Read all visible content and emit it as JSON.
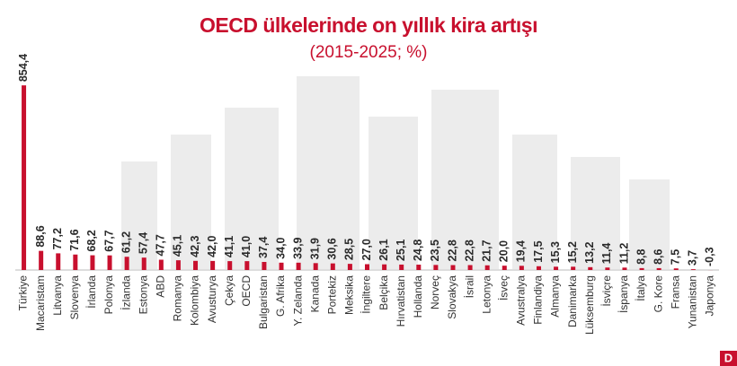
{
  "chart_data": {
    "type": "bar",
    "title": "OECD ülkelerinde on yıllık kira artışı",
    "subtitle": "(2015-2025; %)",
    "logo": "D",
    "color": "#c8102e",
    "ylim": [
      0,
      880
    ],
    "categories": [
      "Türkiye",
      "Macaristam",
      "Litvanya",
      "Slovenya",
      "İrlanda",
      "Polonya",
      "İzlanda",
      "Estonya",
      "ABD",
      "Romanya",
      "Kolombiya",
      "Avusturya",
      "Çekya",
      "OECD",
      "Bulgaristan",
      "G. Afrika",
      "Y. Zelanda",
      "Kanada",
      "Portekiz",
      "Meksika",
      "İngiltere",
      "Belçika",
      "Hırvatistan",
      "Hollanda",
      "Norveç",
      "Slovakya",
      "İsrail",
      "Letonya",
      "İsveç",
      "Avustralya",
      "Finlandiya",
      "Almanya",
      "Danimarka",
      "Lüksemburg",
      "İsviçre",
      "İspanya",
      "İtalya",
      "G. Kore",
      "Fransa",
      "Yunanistan",
      "Japonya"
    ],
    "values": [
      854.4,
      88.6,
      77.2,
      71.6,
      68.2,
      67.7,
      61.2,
      57.4,
      47.7,
      45.1,
      42.3,
      42.0,
      41.1,
      41.0,
      37.4,
      34.0,
      33.9,
      31.9,
      30.6,
      28.5,
      27.0,
      26.1,
      25.1,
      24.8,
      23.5,
      22.8,
      22.8,
      21.7,
      20.0,
      19.4,
      17.5,
      15.3,
      15.2,
      13.2,
      11.4,
      11.2,
      8.8,
      8.6,
      7.5,
      3.7,
      -0.3
    ],
    "value_labels": [
      "854,4",
      "88,6",
      "77,2",
      "71,6",
      "68,2",
      "67,7",
      "61,2",
      "57,4",
      "47,7",
      "45,1",
      "42,3",
      "42,0",
      "41,1",
      "41,0",
      "37,4",
      "34,0",
      "33,9",
      "31,9",
      "30,6",
      "28,5",
      "27,0",
      "26,1",
      "25,1",
      "24,8",
      "23,5",
      "22,8",
      "22,8",
      "21,7",
      "20,0",
      "19,4",
      "17,5",
      "15,3",
      "15,2",
      "13,2",
      "11,4",
      "11,2",
      "8,8",
      "8,6",
      "7,5",
      "3,7",
      "-0,3"
    ]
  }
}
